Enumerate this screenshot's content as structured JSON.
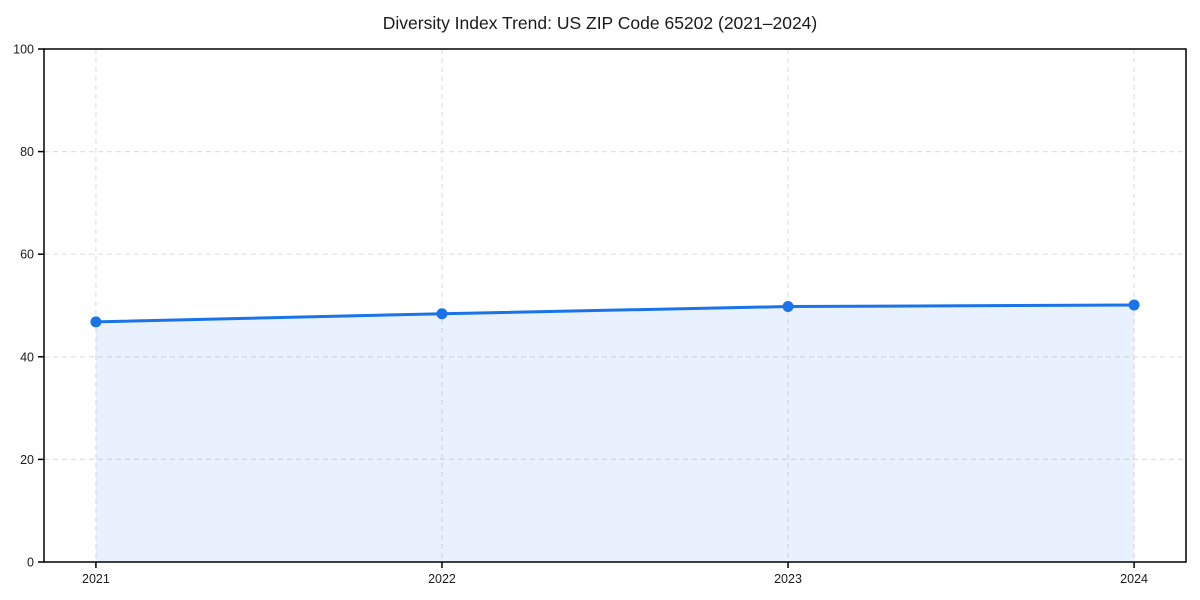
{
  "chart_data": {
    "type": "line",
    "title": "Diversity Index Trend: US ZIP Code 65202 (2021–2024)",
    "categories": [
      "2021",
      "2022",
      "2023",
      "2024"
    ],
    "series": [
      {
        "name": "Diversity Index",
        "values": [
          46.8,
          48.4,
          49.8,
          50.1
        ]
      }
    ],
    "xlabel": "",
    "ylabel": "",
    "ylim": [
      0,
      100
    ],
    "yticks": [
      0,
      20,
      40,
      60,
      80,
      100
    ],
    "grid": true,
    "grid_style": "dashed",
    "legend": false,
    "area_fill": true,
    "markers": true,
    "colors": {
      "line": "#1a73e8",
      "marker": "#1a73e8",
      "fill": "rgba(26,115,232,0.10)",
      "grid": "#e0e0e0",
      "spine": "#000000",
      "text": "#1a1a1a",
      "background": "#ffffff"
    }
  }
}
